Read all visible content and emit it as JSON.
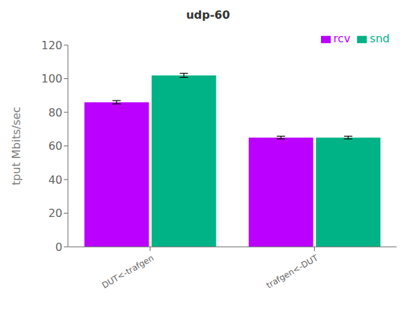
{
  "chart_data": {
    "type": "bar",
    "title": "udp-60",
    "ylabel": "tput Mbits/sec",
    "categories": [
      "DUT<-trafgen",
      "trafgen<-DUT"
    ],
    "series": [
      {
        "name": "rcv",
        "color": "#bb00ff",
        "values": [
          86.0,
          65.0
        ],
        "errors": [
          1.0,
          0.8
        ]
      },
      {
        "name": "snd",
        "color": "#00b386",
        "values": [
          102.0,
          65.0
        ],
        "errors": [
          1.2,
          0.8
        ]
      }
    ],
    "ylim": [
      0,
      120
    ],
    "yticks": [
      0,
      20,
      40,
      60,
      80,
      100,
      120
    ],
    "grid": false,
    "legend": "upper right"
  }
}
